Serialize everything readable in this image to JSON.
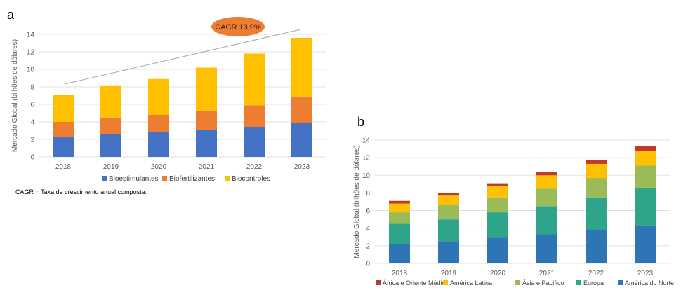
{
  "chart_data": [
    {
      "panel": "a",
      "type": "bar",
      "stacked": true,
      "categories": [
        "2018",
        "2019",
        "2020",
        "2021",
        "2022",
        "2023"
      ],
      "series": [
        {
          "name": "Bioestimulantes",
          "color": "#4472c4",
          "values": [
            2.3,
            2.6,
            2.8,
            3.1,
            3.4,
            3.9
          ]
        },
        {
          "name": "Biofertilizantes",
          "color": "#ed7d31",
          "values": [
            1.7,
            1.9,
            2.0,
            2.2,
            2.5,
            3.0
          ]
        },
        {
          "name": "Biocontroles",
          "color": "#ffc000",
          "values": [
            3.1,
            3.6,
            4.1,
            4.9,
            5.9,
            6.7
          ]
        }
      ],
      "ylabel": "Mercado Global (bilhões de dólares)",
      "ylim": [
        0,
        14
      ],
      "yticks": [
        0,
        2,
        4,
        6,
        8,
        10,
        12,
        14
      ],
      "legend_position": "bottom",
      "annotation": "CACR 13,9%",
      "footnote": "CAGR = Taxa de crescimento anual composta."
    },
    {
      "panel": "b",
      "type": "bar",
      "stacked": true,
      "categories": [
        "2018",
        "2019",
        "2020",
        "2021",
        "2022",
        "2023"
      ],
      "series": [
        {
          "name": "América do Norte",
          "color": "#2e75b6",
          "values": [
            2.2,
            2.5,
            2.9,
            3.3,
            3.8,
            4.3
          ]
        },
        {
          "name": "Europa",
          "color": "#2ea58a",
          "values": [
            2.3,
            2.5,
            2.9,
            3.2,
            3.7,
            4.3
          ]
        },
        {
          "name": "Ásia e Pacífico",
          "color": "#9bbb59",
          "values": [
            1.3,
            1.6,
            1.7,
            2.0,
            2.2,
            2.5
          ]
        },
        {
          "name": "América Latina",
          "color": "#ffc000",
          "values": [
            1.0,
            1.1,
            1.3,
            1.5,
            1.6,
            1.7
          ]
        },
        {
          "name": "África e Oriente Médio",
          "color": "#c0392b",
          "values": [
            0.3,
            0.3,
            0.3,
            0.4,
            0.4,
            0.5
          ]
        }
      ],
      "ylabel": "Mercado Global (bilhões de dólares)",
      "ylim": [
        0,
        14
      ],
      "yticks": [
        0,
        2,
        4,
        6,
        8,
        10,
        12,
        14
      ],
      "legend_position": "bottom",
      "legend_order": [
        "África e Oriente Médio",
        "América Latina",
        "Ásia e Pacífico",
        "Europa",
        "América do Norte"
      ]
    }
  ],
  "panels": {
    "a": "a",
    "b": "b"
  }
}
